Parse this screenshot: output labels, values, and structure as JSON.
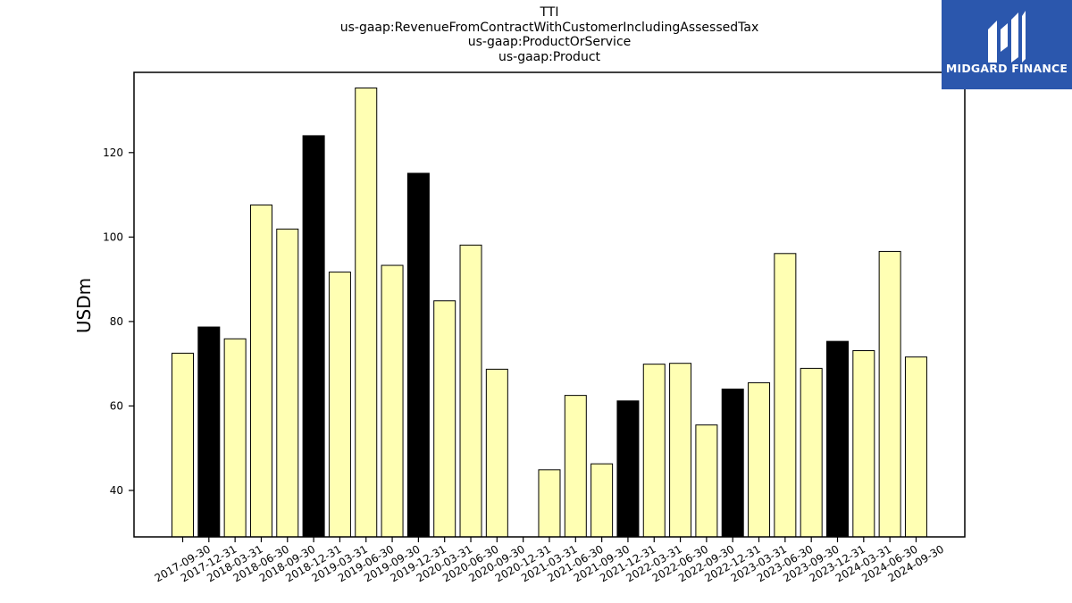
{
  "header": {
    "title_lines": [
      "TTI",
      "us-gaap:RevenueFromContractWithCustomerIncludingAssessedTax",
      "us-gaap:ProductOrService",
      "us-gaap:Product"
    ]
  },
  "logo": {
    "text": "MIDGARD FINANCE",
    "background": "#2b57ad"
  },
  "colors": {
    "bar_normal": "#ffffb3",
    "bar_highlight": "#000000",
    "bar_edge": "#000000"
  },
  "chart_data": {
    "type": "bar",
    "title": "TTI\nus-gaap:RevenueFromContractWithCustomerIncludingAssessedTax\nus-gaap:ProductOrService\nus-gaap:Product",
    "xlabel": "",
    "ylabel": "USDm",
    "ylim": [
      29,
      139
    ],
    "yticks": [
      40,
      60,
      80,
      100,
      120
    ],
    "grid": false,
    "categories": [
      "2017-09-30",
      "2017-12-31",
      "2018-03-31",
      "2018-06-30",
      "2018-09-30",
      "2018-12-31",
      "2019-03-31",
      "2019-06-30",
      "2019-09-30",
      "2019-12-31",
      "2020-03-31",
      "2020-06-30",
      "2020-09-30",
      "2020-12-31",
      "2021-03-31",
      "2021-06-30",
      "2021-09-30",
      "2021-12-31",
      "2022-03-31",
      "2022-06-30",
      "2022-09-30",
      "2022-12-31",
      "2023-03-31",
      "2023-06-30",
      "2023-09-30",
      "2023-12-31",
      "2024-03-31",
      "2024-06-30",
      "2024-09-30"
    ],
    "values": [
      72.5,
      78.7,
      75.9,
      107.6,
      101.9,
      124.0,
      91.7,
      135.3,
      93.3,
      115.1,
      84.9,
      98.1,
      68.7,
      null,
      44.9,
      62.5,
      46.3,
      61.2,
      69.9,
      70.1,
      55.5,
      64.0,
      65.5,
      96.1,
      68.9,
      75.3,
      73.1,
      96.6,
      71.6
    ],
    "highlight": [
      false,
      true,
      false,
      false,
      false,
      true,
      false,
      false,
      false,
      true,
      false,
      false,
      false,
      false,
      false,
      false,
      false,
      true,
      false,
      false,
      false,
      true,
      false,
      false,
      false,
      true,
      false,
      false,
      false
    ]
  }
}
